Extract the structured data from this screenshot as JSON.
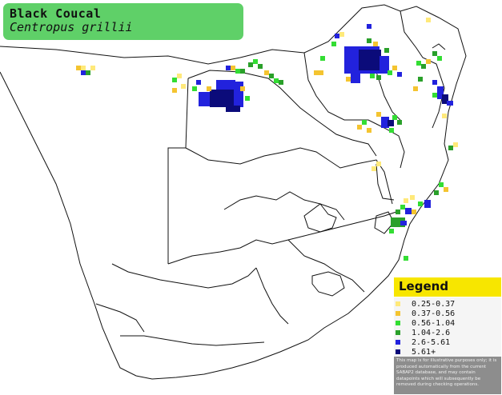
{
  "title": {
    "common_name": "Black Coucal",
    "scientific_name": "Centropus grillii"
  },
  "legend": {
    "heading": "Legend",
    "items": [
      {
        "label": "0.25-0.37",
        "color": "#ffe97a"
      },
      {
        "label": "0.37-0.56",
        "color": "#f4c430"
      },
      {
        "label": "0.56-1.04",
        "color": "#33dd33"
      },
      {
        "label": "1.04-2.6",
        "color": "#2aa02a"
      },
      {
        "label": "2.6-5.61",
        "color": "#2222dd"
      },
      {
        "label": "5.61+",
        "color": "#0b0b7a"
      }
    ],
    "disclaimer": "This map is for illustrative purposes only; it is produced automatically from the current SABAP2 database, and may contain datapoints which will subsequently be removed during checking operations."
  }
}
